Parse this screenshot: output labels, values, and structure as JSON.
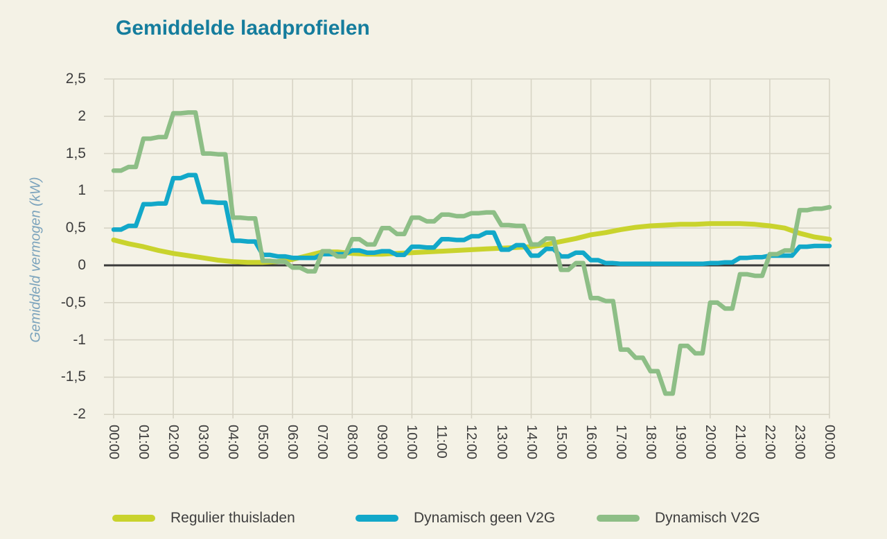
{
  "colors": {
    "background": "#f4f2e6",
    "title": "#157d9d",
    "axis_title": "#7ba3bc",
    "tick_text": "#3d3d3d",
    "grid": "#d7d4c5",
    "zero_line": "#3a3a3a",
    "series_regulier": "#c9d32d",
    "series_geen_v2g": "#12a8c9",
    "series_v2g": "#8dbe86"
  },
  "chart_data": {
    "type": "line",
    "title": "Gemiddelde laadprofielen",
    "xlabel": "",
    "ylabel": "Gemiddeld vermogen (kW)",
    "ylim": [
      -2,
      2.5
    ],
    "xlim_hours": [
      0,
      24
    ],
    "grid": "on",
    "legend_position": "bottom",
    "x_gridline_every_hours": 2,
    "interval_hours": 0.5,
    "y_ticks": [
      2.5,
      2,
      1.5,
      1,
      0.5,
      0,
      -0.5,
      -1,
      -1.5,
      -2
    ],
    "y_ticklabels": [
      "2,5",
      "2",
      "1,5",
      "1",
      "0,5",
      "0",
      "-0,5",
      "-1",
      "-1,5",
      "-2"
    ],
    "x_ticklabels": [
      "00:00",
      "01:00",
      "02:00",
      "03:00",
      "04:00",
      "05:00",
      "06:00",
      "07:00",
      "08:00",
      "09:00",
      "10:00",
      "11:00",
      "12:00",
      "13:00",
      "14:00",
      "15:00",
      "16:00",
      "17:00",
      "18:00",
      "19:00",
      "20:00",
      "21:00",
      "22:00",
      "23:00",
      "00:00"
    ],
    "series": [
      {
        "name": "Regulier thuisladen",
        "color": "#c9d32d",
        "style": "smooth",
        "values": [
          0.34,
          0.29,
          0.25,
          0.2,
          0.16,
          0.13,
          0.1,
          0.07,
          0.05,
          0.04,
          0.04,
          0.05,
          0.08,
          0.13,
          0.18,
          0.18,
          0.16,
          0.15,
          0.15,
          0.16,
          0.17,
          0.18,
          0.19,
          0.2,
          0.21,
          0.22,
          0.23,
          0.24,
          0.25,
          0.28,
          0.32,
          0.36,
          0.41,
          0.44,
          0.48,
          0.51,
          0.53,
          0.54,
          0.55,
          0.55,
          0.56,
          0.56,
          0.56,
          0.55,
          0.53,
          0.5,
          0.43,
          0.38,
          0.35
        ]
      },
      {
        "name": "Dynamisch geen V2G",
        "color": "#12a8c9",
        "style": "step",
        "values": [
          0.48,
          0.53,
          0.82,
          0.83,
          1.17,
          1.21,
          0.85,
          0.84,
          0.33,
          0.32,
          0.14,
          0.12,
          0.1,
          0.1,
          0.15,
          0.15,
          0.2,
          0.17,
          0.19,
          0.14,
          0.25,
          0.24,
          0.35,
          0.34,
          0.39,
          0.44,
          0.21,
          0.27,
          0.13,
          0.22,
          0.12,
          0.17,
          0.07,
          0.03,
          0.02,
          0.02,
          0.02,
          0.02,
          0.02,
          0.02,
          0.03,
          0.04,
          0.1,
          0.11,
          0.13,
          0.13,
          0.25,
          0.26,
          0.26
        ]
      },
      {
        "name": "Dynamisch V2G",
        "color": "#8dbe86",
        "style": "step",
        "values": [
          1.27,
          1.32,
          1.7,
          1.72,
          2.04,
          2.05,
          1.5,
          1.49,
          0.64,
          0.63,
          0.06,
          0.05,
          -0.03,
          -0.08,
          0.19,
          0.12,
          0.35,
          0.28,
          0.5,
          0.42,
          0.64,
          0.59,
          0.68,
          0.66,
          0.7,
          0.71,
          0.54,
          0.53,
          0.28,
          0.36,
          -0.06,
          0.03,
          -0.44,
          -0.48,
          -1.13,
          -1.24,
          -1.42,
          -1.72,
          -1.08,
          -1.18,
          -0.5,
          -0.58,
          -0.12,
          -0.14,
          0.15,
          0.2,
          0.74,
          0.76,
          0.78
        ]
      }
    ]
  }
}
